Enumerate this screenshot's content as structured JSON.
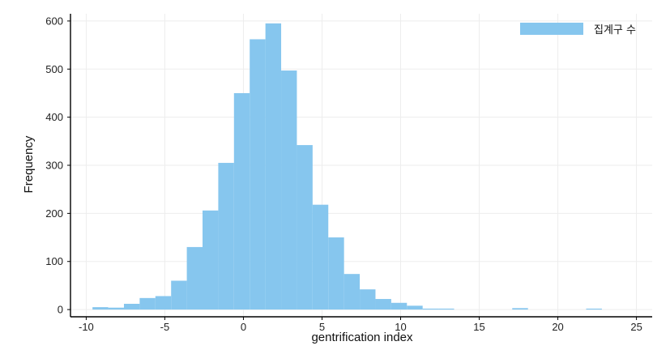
{
  "chart_data": {
    "type": "bar",
    "xlabel": "gentrification index",
    "ylabel": "Frequency",
    "xlim": [
      -11,
      26
    ],
    "ylim": [
      -15,
      615
    ],
    "bin_width": 1,
    "x_ticks": [
      -10,
      -5,
      0,
      5,
      10,
      15,
      20,
      25
    ],
    "y_ticks": [
      0,
      100,
      200,
      300,
      400,
      500,
      600
    ],
    "grid": true,
    "legend_position": "top-right",
    "series": [
      {
        "name": "집계구 수",
        "color": "#86c6ee",
        "bins": [
          {
            "x0": -9.6,
            "count": 5
          },
          {
            "x0": -8.6,
            "count": 4
          },
          {
            "x0": -7.6,
            "count": 12
          },
          {
            "x0": -6.6,
            "count": 24
          },
          {
            "x0": -5.6,
            "count": 28
          },
          {
            "x0": -4.6,
            "count": 60
          },
          {
            "x0": -3.6,
            "count": 130
          },
          {
            "x0": -2.6,
            "count": 206
          },
          {
            "x0": -1.6,
            "count": 305
          },
          {
            "x0": -0.6,
            "count": 450
          },
          {
            "x0": 0.4,
            "count": 562
          },
          {
            "x0": 1.4,
            "count": 595
          },
          {
            "x0": 2.4,
            "count": 497
          },
          {
            "x0": 3.4,
            "count": 342
          },
          {
            "x0": 4.4,
            "count": 218
          },
          {
            "x0": 5.4,
            "count": 150
          },
          {
            "x0": 6.4,
            "count": 74
          },
          {
            "x0": 7.4,
            "count": 42
          },
          {
            "x0": 8.4,
            "count": 22
          },
          {
            "x0": 9.4,
            "count": 14
          },
          {
            "x0": 10.4,
            "count": 8
          },
          {
            "x0": 11.4,
            "count": 2
          },
          {
            "x0": 12.4,
            "count": 2
          },
          {
            "x0": 17.1,
            "count": 3
          },
          {
            "x0": 21.8,
            "count": 2
          }
        ]
      }
    ]
  }
}
